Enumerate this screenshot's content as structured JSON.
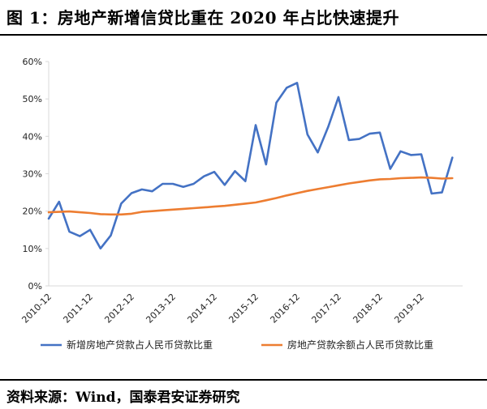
{
  "header": {
    "title": "图 1：房地产新增信贷比重在 2020 年占比快速提升"
  },
  "footer": {
    "source": "资料来源：Wind，国泰君安证券研究"
  },
  "colors": {
    "series1": "#4472C4",
    "series2": "#ED7D31",
    "axis": "#d9d9d9"
  },
  "chart_data": {
    "type": "line",
    "title": "",
    "xlabel": "",
    "ylabel": "",
    "ylim": [
      0,
      60
    ],
    "y_ticks": [
      "0%",
      "10%",
      "20%",
      "30%",
      "40%",
      "50%",
      "60%"
    ],
    "x_tick_labels": [
      "2010-12",
      "2011-12",
      "2012-12",
      "2013-12",
      "2014-12",
      "2015-12",
      "2016-12",
      "2017-12",
      "2018-12",
      "2019-12"
    ],
    "x_tick_quarter_index": [
      0,
      4,
      8,
      12,
      16,
      20,
      24,
      28,
      32,
      36
    ],
    "x_quarter_count": 41,
    "grid": false,
    "legend_position": "bottom",
    "series": [
      {
        "name": "新增房地产贷款占人民币贷款比重",
        "values": [
          18.0,
          22.5,
          14.5,
          13.3,
          15.0,
          10.0,
          13.5,
          22.0,
          24.8,
          25.8,
          25.3,
          27.3,
          27.3,
          26.5,
          27.3,
          29.3,
          30.5,
          27.0,
          30.7,
          28.0,
          43.0,
          32.5,
          49.0,
          53.0,
          54.3,
          40.5,
          35.7,
          42.5,
          50.5,
          39.0,
          39.3,
          40.7,
          41.0,
          31.3,
          36.0,
          35.0,
          35.2,
          24.7,
          25.0,
          34.3
        ]
      },
      {
        "name": "房地产贷款余额占人民币贷款比重",
        "values": [
          19.7,
          19.8,
          19.9,
          19.7,
          19.5,
          19.2,
          19.1,
          19.1,
          19.3,
          19.8,
          20.0,
          20.2,
          20.4,
          20.6,
          20.8,
          21.0,
          21.2,
          21.4,
          21.7,
          22.0,
          22.3,
          22.9,
          23.5,
          24.2,
          24.8,
          25.4,
          25.9,
          26.4,
          26.9,
          27.4,
          27.8,
          28.2,
          28.5,
          28.6,
          28.8,
          28.9,
          29.0,
          28.9,
          28.7,
          28.8
        ]
      }
    ]
  }
}
